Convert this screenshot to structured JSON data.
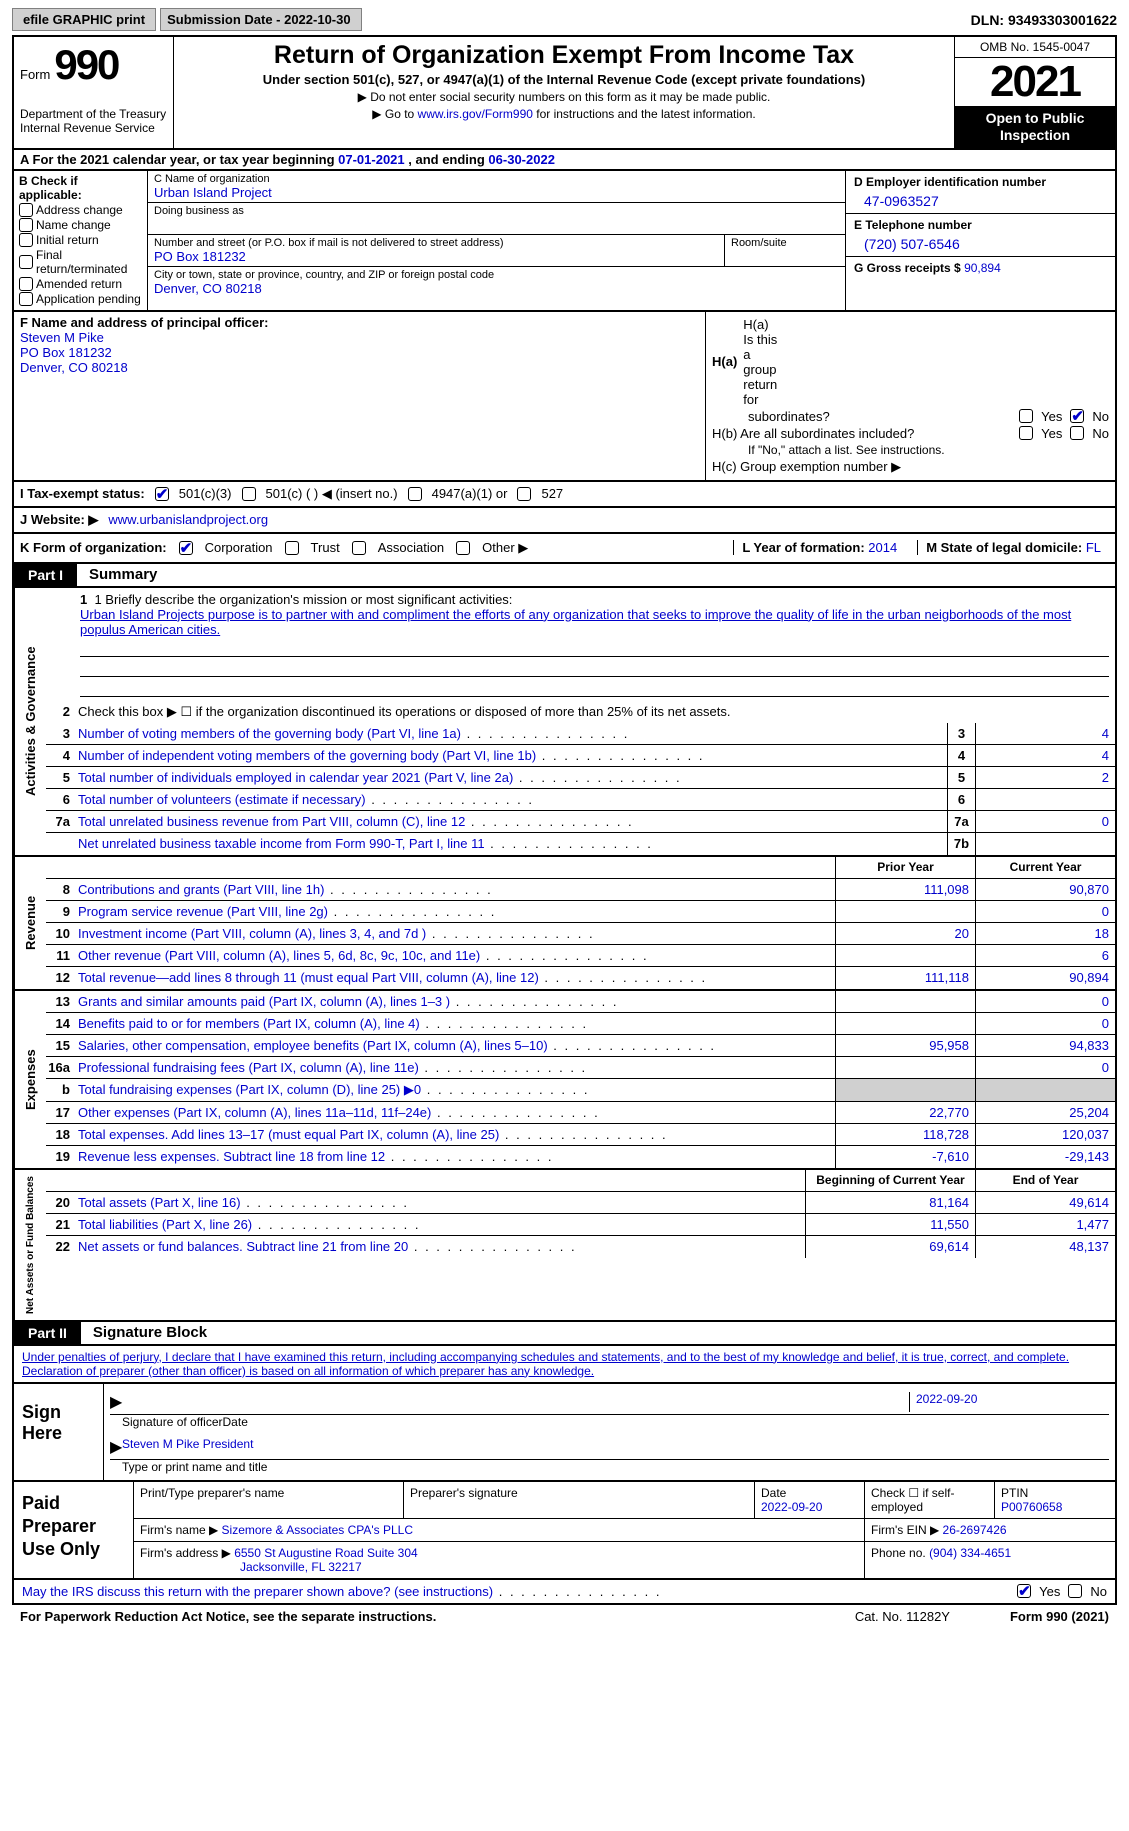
{
  "meta": {
    "efile_label": "efile GRAPHIC print",
    "submission_date_label": "Submission Date - 2022-10-30",
    "dln_label": "DLN: 93493303001622"
  },
  "header": {
    "form_word": "Form",
    "form_number": "990",
    "dept": "Department of the Treasury\nInternal Revenue Service",
    "title": "Return of Organization Exempt From Income Tax",
    "subtitle": "Under section 501(c), 527, or 4947(a)(1) of the Internal Revenue Code (except private foundations)",
    "note1": "▶ Do not enter social security numbers on this form as it may be made public.",
    "note2_pre": "▶ Go to ",
    "note2_link": "www.irs.gov/Form990",
    "note2_post": " for instructions and the latest information.",
    "omb": "OMB No. 1545-0047",
    "year": "2021",
    "open_to_public": "Open to Public Inspection"
  },
  "line_a": {
    "text_pre": "A For the 2021 calendar year, or tax year beginning ",
    "begin": "07-01-2021",
    "mid": "   , and ending ",
    "end": "06-30-2022"
  },
  "col_b": {
    "header": "B Check if applicable:",
    "items": [
      "Address change",
      "Name change",
      "Initial return",
      "Final return/terminated",
      "Amended return",
      "Application pending"
    ]
  },
  "col_c": {
    "name_label": "C Name of organization",
    "name": "Urban Island Project",
    "dba_label": "Doing business as",
    "dba": "",
    "street_label": "Number and street (or P.O. box if mail is not delivered to street address)",
    "street": "PO Box 181232",
    "room_label": "Room/suite",
    "city_label": "City or town, state or province, country, and ZIP or foreign postal code",
    "city": "Denver, CO  80218"
  },
  "col_d": {
    "ein_label": "D Employer identification number",
    "ein": "47-0963527",
    "tel_label": "E Telephone number",
    "tel": "(720) 507-6546",
    "gross_label": "G Gross receipts $ ",
    "gross": "90,894"
  },
  "f": {
    "label": "F Name and address of principal officer:",
    "name": "Steven M Pike",
    "addr1": "PO Box 181232",
    "addr2": "Denver, CO  80218"
  },
  "h": {
    "a_label": "H(a)  Is this a group return for",
    "a_label2": "subordinates?",
    "b_label": "H(b)  Are all subordinates included?",
    "b_note": "If \"No,\" attach a list. See instructions.",
    "c_label": "H(c)  Group exemption number ▶",
    "yes": "Yes",
    "no": "No"
  },
  "row_i": {
    "label": "I   Tax-exempt status:",
    "opts": [
      "501(c)(3)",
      "501(c) (  ) ◀ (insert no.)",
      "4947(a)(1) or",
      "527"
    ]
  },
  "row_j": {
    "label": "J   Website: ▶",
    "val": "www.urbanislandproject.org"
  },
  "row_k": {
    "label": "K Form of organization:",
    "opts": [
      "Corporation",
      "Trust",
      "Association",
      "Other ▶"
    ],
    "l_label": "L Year of formation: ",
    "l_val": "2014",
    "m_label": "M State of legal domicile: ",
    "m_val": "FL"
  },
  "part1": {
    "tag": "Part I",
    "title": "Summary"
  },
  "summary": {
    "mission_label": "1   Briefly describe the organization's mission or most significant activities:",
    "mission": "Urban Island Projects purpose is to partner with and compliment the efforts of any organization that seeks to improve the quality of life in the urban neigborhoods of the most populus American cities.",
    "line2": "Check this box ▶ ☐  if the organization discontinued its operations or disposed of more than 25% of its net assets.",
    "rows_gov": [
      {
        "n": "3",
        "d": "Number of voting members of the governing body (Part VI, line 1a)",
        "box": "3",
        "v": "4"
      },
      {
        "n": "4",
        "d": "Number of independent voting members of the governing body (Part VI, line 1b)",
        "box": "4",
        "v": "4"
      },
      {
        "n": "5",
        "d": "Total number of individuals employed in calendar year 2021 (Part V, line 2a)",
        "box": "5",
        "v": "2"
      },
      {
        "n": "6",
        "d": "Total number of volunteers (estimate if necessary)",
        "box": "6",
        "v": ""
      },
      {
        "n": "7a",
        "d": "Total unrelated business revenue from Part VIII, column (C), line 12",
        "box": "7a",
        "v": "0"
      },
      {
        "n": "",
        "d": "Net unrelated business taxable income from Form 990-T, Part I, line 11",
        "box": "7b",
        "v": ""
      }
    ],
    "col_headers": {
      "prior": "Prior Year",
      "current": "Current Year"
    },
    "rows_rev": [
      {
        "n": "8",
        "d": "Contributions and grants (Part VIII, line 1h)",
        "p": "111,098",
        "c": "90,870"
      },
      {
        "n": "9",
        "d": "Program service revenue (Part VIII, line 2g)",
        "p": "",
        "c": "0"
      },
      {
        "n": "10",
        "d": "Investment income (Part VIII, column (A), lines 3, 4, and 7d )",
        "p": "20",
        "c": "18"
      },
      {
        "n": "11",
        "d": "Other revenue (Part VIII, column (A), lines 5, 6d, 8c, 9c, 10c, and 11e)",
        "p": "",
        "c": "6"
      },
      {
        "n": "12",
        "d": "Total revenue—add lines 8 through 11 (must equal Part VIII, column (A), line 12)",
        "p": "111,118",
        "c": "90,894"
      }
    ],
    "rows_exp": [
      {
        "n": "13",
        "d": "Grants and similar amounts paid (Part IX, column (A), lines 1–3 )",
        "p": "",
        "c": "0"
      },
      {
        "n": "14",
        "d": "Benefits paid to or for members (Part IX, column (A), line 4)",
        "p": "",
        "c": "0"
      },
      {
        "n": "15",
        "d": "Salaries, other compensation, employee benefits (Part IX, column (A), lines 5–10)",
        "p": "95,958",
        "c": "94,833"
      },
      {
        "n": "16a",
        "d": "Professional fundraising fees (Part IX, column (A), line 11e)",
        "p": "",
        "c": "0"
      },
      {
        "n": "b",
        "d": "Total fundraising expenses (Part IX, column (D), line 25) ▶0",
        "p": "grey",
        "c": "grey"
      },
      {
        "n": "17",
        "d": "Other expenses (Part IX, column (A), lines 11a–11d, 11f–24e)",
        "p": "22,770",
        "c": "25,204"
      },
      {
        "n": "18",
        "d": "Total expenses. Add lines 13–17 (must equal Part IX, column (A), line 25)",
        "p": "118,728",
        "c": "120,037"
      },
      {
        "n": "19",
        "d": "Revenue less expenses. Subtract line 18 from line 12",
        "p": "-7,610",
        "c": "-29,143"
      }
    ],
    "col_headers2": {
      "begin": "Beginning of Current Year",
      "end": "End of Year"
    },
    "rows_net": [
      {
        "n": "20",
        "d": "Total assets (Part X, line 16)",
        "p": "81,164",
        "c": "49,614"
      },
      {
        "n": "21",
        "d": "Total liabilities (Part X, line 26)",
        "p": "11,550",
        "c": "1,477"
      },
      {
        "n": "22",
        "d": "Net assets or fund balances. Subtract line 21 from line 20",
        "p": "69,614",
        "c": "48,137"
      }
    ],
    "vtabs": {
      "gov": "Activities & Governance",
      "rev": "Revenue",
      "exp": "Expenses",
      "net": "Net Assets or Fund Balances"
    }
  },
  "part2": {
    "tag": "Part II",
    "title": "Signature Block"
  },
  "sig": {
    "intro": "Under penalties of perjury, I declare that I have examined this return, including accompanying schedules and statements, and to the best of my knowledge and belief, it is true, correct, and complete. Declaration of preparer (other than officer) is based on all information of which preparer has any knowledge.",
    "sign_here": "Sign Here",
    "sig_officer": "Signature of officer",
    "sig_date": "2022-09-20",
    "name_title": "Steven M Pike  President",
    "name_title_label": "Type or print name and title"
  },
  "paid": {
    "label": "Paid Preparer Use Only",
    "print_name_label": "Print/Type preparer's name",
    "prep_sig_label": "Preparer's signature",
    "date_label": "Date",
    "date": "2022-09-20",
    "check_label": "Check ☐ if self-employed",
    "ptin_label": "PTIN",
    "ptin": "P00760658",
    "firm_name_label": "Firm's name     ▶ ",
    "firm_name": "Sizemore & Associates CPA's PLLC",
    "firm_ein_label": "Firm's EIN ▶ ",
    "firm_ein": "26-2697426",
    "firm_addr_label": "Firm's address ▶ ",
    "firm_addr1": "6550 St Augustine Road Suite 304",
    "firm_addr2": "Jacksonville, FL  32217",
    "phone_label": "Phone no. ",
    "phone": "(904) 334-4651"
  },
  "footer": {
    "discuss": "May the IRS discuss this return with the preparer shown above? (see instructions)",
    "yes": "Yes",
    "no": "No",
    "paperwork": "For Paperwork Reduction Act Notice, see the separate instructions.",
    "cat": "Cat. No. 11282Y",
    "form": "Form 990 (2021)"
  },
  "colors": {
    "link": "#0000cc",
    "black": "#000000",
    "grey": "#d0d0d0"
  }
}
